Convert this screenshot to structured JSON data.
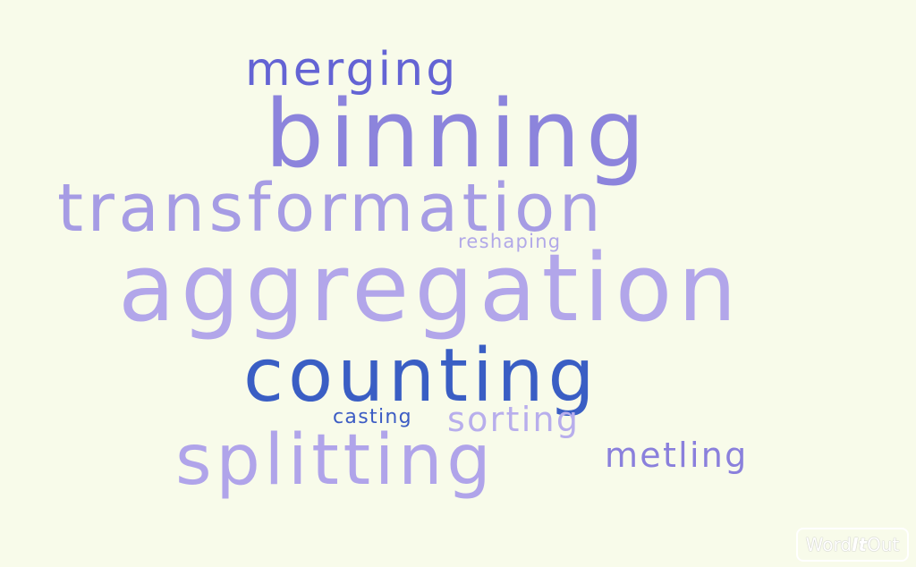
{
  "words": [
    {
      "text": "merging",
      "color": "#6464d4"
    },
    {
      "text": "binning",
      "color": "#8c84dc"
    },
    {
      "text": "transformation",
      "color": "#a69ce4"
    },
    {
      "text": "reshaping",
      "color": "#b1a8e8"
    },
    {
      "text": "aggregation",
      "color": "#b2a6ea"
    },
    {
      "text": "counting",
      "color": "#3a5ec4"
    },
    {
      "text": "casting",
      "color": "#3c5cc4"
    },
    {
      "text": "sorting",
      "color": "#b8aeec"
    },
    {
      "text": "splitting",
      "color": "#b0a4ea"
    },
    {
      "text": "metling",
      "color": "#8a80dc"
    }
  ],
  "logo": {
    "part1": "Word",
    "part2": "It",
    "part3": "Out"
  },
  "colors": {
    "background": "#f8fbea"
  }
}
